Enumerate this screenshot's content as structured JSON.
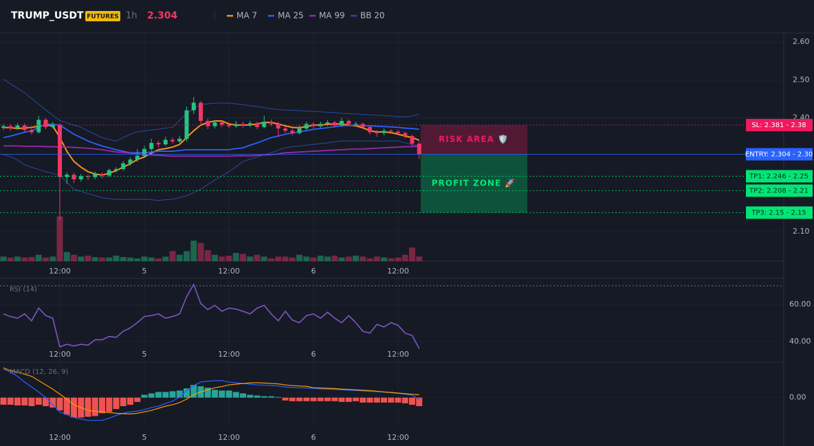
{
  "header": {
    "symbol": "TRUMP_USDT",
    "badge": "FUTURES",
    "interval": "1h",
    "price": 2.304
  },
  "chart_data": [
    {
      "type": "candlestick",
      "categories": [
        null,
        null,
        null,
        null,
        null,
        null,
        null,
        null,
        "12:00",
        null,
        null,
        null,
        null,
        null,
        null,
        null,
        null,
        null,
        null,
        null,
        "5",
        null,
        null,
        null,
        null,
        null,
        null,
        null,
        null,
        null,
        null,
        null,
        "12:00",
        null,
        null,
        null,
        null,
        null,
        null,
        null,
        null,
        null,
        null,
        null,
        "6",
        null,
        null,
        null,
        null,
        null,
        null,
        null,
        null,
        null,
        null,
        null,
        "12:00",
        null,
        null,
        null
      ],
      "open": [
        2.374,
        2.378,
        2.372,
        2.38,
        2.368,
        2.362,
        2.395,
        2.376,
        2.382,
        2.244,
        2.25,
        2.238,
        2.246,
        2.244,
        2.252,
        2.248,
        2.262,
        2.265,
        2.28,
        2.29,
        2.3,
        2.318,
        2.334,
        2.33,
        2.342,
        2.338,
        2.345,
        2.42,
        2.44,
        2.392,
        2.378,
        2.388,
        2.382,
        2.378,
        2.384,
        2.38,
        2.386,
        2.376,
        2.39,
        2.384,
        2.372,
        2.366,
        2.36,
        2.372,
        2.384,
        2.378,
        2.384,
        2.388,
        2.38,
        2.392,
        2.384,
        2.384,
        2.376,
        2.362,
        2.36,
        2.366,
        2.364,
        2.36,
        2.352,
        2.332
      ],
      "high": [
        2.384,
        2.384,
        2.386,
        2.386,
        2.375,
        2.405,
        2.4,
        2.39,
        2.386,
        2.256,
        2.256,
        2.252,
        2.25,
        2.258,
        2.256,
        2.266,
        2.27,
        2.286,
        2.296,
        2.318,
        2.326,
        2.345,
        2.34,
        2.35,
        2.348,
        2.352,
        2.43,
        2.455,
        2.444,
        2.398,
        2.394,
        2.392,
        2.388,
        2.392,
        2.39,
        2.392,
        2.39,
        2.406,
        2.396,
        2.39,
        2.378,
        2.372,
        2.38,
        2.39,
        2.388,
        2.39,
        2.394,
        2.392,
        2.4,
        2.396,
        2.39,
        2.388,
        2.38,
        2.368,
        2.372,
        2.37,
        2.368,
        2.364,
        2.356,
        2.338
      ],
      "low": [
        2.368,
        2.366,
        2.368,
        2.362,
        2.356,
        2.358,
        2.37,
        2.372,
        2.13,
        2.226,
        2.228,
        2.232,
        2.236,
        2.238,
        2.24,
        2.244,
        2.256,
        2.26,
        2.274,
        2.284,
        2.294,
        2.312,
        2.322,
        2.326,
        2.332,
        2.334,
        2.338,
        2.41,
        2.384,
        2.37,
        2.372,
        2.376,
        2.372,
        2.374,
        2.374,
        2.376,
        2.37,
        2.372,
        2.378,
        2.35,
        2.36,
        2.354,
        2.356,
        2.366,
        2.372,
        2.374,
        2.378,
        2.374,
        2.376,
        2.378,
        2.378,
        2.37,
        2.356,
        2.35,
        2.354,
        2.358,
        2.354,
        2.346,
        2.326,
        2.292
      ],
      "close": [
        2.378,
        2.372,
        2.38,
        2.368,
        2.362,
        2.395,
        2.376,
        2.382,
        2.244,
        2.25,
        2.238,
        2.246,
        2.244,
        2.252,
        2.248,
        2.262,
        2.265,
        2.28,
        2.29,
        2.3,
        2.318,
        2.334,
        2.33,
        2.342,
        2.338,
        2.345,
        2.42,
        2.44,
        2.392,
        2.378,
        2.388,
        2.382,
        2.378,
        2.384,
        2.38,
        2.386,
        2.376,
        2.39,
        2.384,
        2.372,
        2.366,
        2.36,
        2.372,
        2.384,
        2.378,
        2.384,
        2.388,
        2.38,
        2.392,
        2.384,
        2.384,
        2.376,
        2.362,
        2.36,
        2.366,
        2.364,
        2.36,
        2.352,
        2.332,
        2.304
      ],
      "volume": [
        10,
        8,
        10,
        8,
        9,
        14,
        8,
        10,
        98,
        20,
        14,
        10,
        12,
        9,
        8,
        8,
        12,
        9,
        8,
        6,
        10,
        8,
        6,
        10,
        22,
        14,
        22,
        45,
        40,
        24,
        14,
        10,
        12,
        18,
        16,
        10,
        14,
        10,
        6,
        10,
        10,
        8,
        14,
        10,
        8,
        12,
        10,
        12,
        8,
        10,
        12,
        10,
        6,
        10,
        8,
        6,
        8,
        14,
        30,
        10
      ],
      "y2lim": [
        0,
        500
      ],
      "up_color": "#26c281",
      "down_color": "#f23666",
      "ylim": [
        2.022,
        2.624
      ],
      "yticks": [
        {
          "value": 2.1,
          "label": "2.10"
        },
        {
          "value": 2.4,
          "label": "2.40"
        },
        {
          "value": 2.5,
          "label": "2.50"
        },
        {
          "value": 2.6,
          "label": "2.60"
        }
      ],
      "series": [
        {
          "name": "MA 7",
          "color": "#f7931a",
          "values": [
            2.375,
            2.374,
            2.372,
            2.373,
            2.375,
            2.378,
            2.381,
            2.379,
            2.348,
            2.312,
            2.285,
            2.27,
            2.258,
            2.252,
            2.249,
            2.254,
            2.261,
            2.27,
            2.279,
            2.29,
            2.297,
            2.307,
            2.316,
            2.319,
            2.323,
            2.33,
            2.348,
            2.366,
            2.381,
            2.388,
            2.392,
            2.392,
            2.384,
            2.381,
            2.381,
            2.381,
            2.384,
            2.388,
            2.388,
            2.384,
            2.379,
            2.375,
            2.374,
            2.377,
            2.381,
            2.381,
            2.383,
            2.384,
            2.384,
            2.381,
            2.379,
            2.374,
            2.366,
            2.363,
            2.363,
            2.361,
            2.357,
            2.352,
            2.348,
            2.341
          ]
        },
        {
          "name": "MA 25",
          "color": "#2962ff",
          "values": [
            2.348,
            2.352,
            2.357,
            2.362,
            2.366,
            2.375,
            2.384,
            2.383,
            2.381,
            2.369,
            2.357,
            2.348,
            2.339,
            2.332,
            2.326,
            2.321,
            2.316,
            2.312,
            2.308,
            2.308,
            2.308,
            2.31,
            2.312,
            2.312,
            2.312,
            2.314,
            2.316,
            2.316,
            2.316,
            2.316,
            2.316,
            2.316,
            2.316,
            2.319,
            2.321,
            2.328,
            2.334,
            2.341,
            2.348,
            2.352,
            2.357,
            2.36,
            2.363,
            2.366,
            2.37,
            2.372,
            2.374,
            2.377,
            2.379,
            2.38,
            2.381,
            2.38,
            2.379,
            2.378,
            2.377,
            2.376,
            2.375,
            2.373,
            2.372,
            2.37
          ]
        },
        {
          "name": "MA 99",
          "color": "#9c27b0",
          "values": [
            2.326,
            2.326,
            2.326,
            2.325,
            2.325,
            2.325,
            2.324,
            2.324,
            2.323,
            2.323,
            2.322,
            2.321,
            2.32,
            2.318,
            2.316,
            2.313,
            2.31,
            2.309,
            2.307,
            2.305,
            2.303,
            2.302,
            2.301,
            2.3,
            2.299,
            2.299,
            2.299,
            2.299,
            2.299,
            2.299,
            2.299,
            2.299,
            2.299,
            2.3,
            2.3,
            2.3,
            2.301,
            2.302,
            2.303,
            2.305,
            2.308,
            2.309,
            2.31,
            2.311,
            2.312,
            2.313,
            2.314,
            2.315,
            2.316,
            2.317,
            2.318,
            2.318,
            2.319,
            2.32,
            2.321,
            2.322,
            2.323,
            2.324,
            2.324,
            2.325
          ]
        },
        {
          "name": "BB 20",
          "color": "#2a4a9e",
          "upper": [
            2.502,
            2.49,
            2.478,
            2.466,
            2.451,
            2.436,
            2.421,
            2.407,
            2.393,
            2.387,
            2.381,
            2.375,
            2.366,
            2.357,
            2.348,
            2.343,
            2.339,
            2.348,
            2.357,
            2.363,
            2.366,
            2.368,
            2.37,
            2.373,
            2.375,
            2.394,
            2.412,
            2.424,
            2.435,
            2.437,
            2.439,
            2.439,
            2.439,
            2.437,
            2.435,
            2.432,
            2.43,
            2.427,
            2.424,
            2.422,
            2.421,
            2.42,
            2.419,
            2.418,
            2.417,
            2.416,
            2.415,
            2.414,
            2.412,
            2.411,
            2.41,
            2.409,
            2.408,
            2.407,
            2.406,
            2.405,
            2.403,
            2.403,
            2.405,
            2.41
          ],
          "lower": [
            2.303,
            2.298,
            2.289,
            2.276,
            2.27,
            2.264,
            2.258,
            2.254,
            2.249,
            2.23,
            2.212,
            2.206,
            2.2,
            2.195,
            2.189,
            2.187,
            2.185,
            2.185,
            2.185,
            2.185,
            2.185,
            2.184,
            2.182,
            2.184,
            2.185,
            2.19,
            2.194,
            2.203,
            2.212,
            2.224,
            2.236,
            2.247,
            2.258,
            2.271,
            2.285,
            2.291,
            2.297,
            2.302,
            2.308,
            2.315,
            2.321,
            2.324,
            2.326,
            2.328,
            2.33,
            2.332,
            2.334,
            2.337,
            2.339,
            2.339,
            2.339,
            2.339,
            2.339,
            2.339,
            2.339,
            2.339,
            2.339,
            2.334,
            2.33,
            2.325
          ]
        }
      ],
      "levels": [
        {
          "label": "SL: 2.381 - 2.38",
          "value": 2.381,
          "color": "#f0185e",
          "text_color": "#ffffff",
          "style": "dotted"
        },
        {
          "label": "ENTRY: 2.304 - 2.30",
          "value": 2.304,
          "color": "#2962ff",
          "text_color": "#ffffff",
          "style": "solid"
        },
        {
          "label": "TP1: 2.246 - 2.25",
          "value": 2.246,
          "color": "#00e676",
          "text_color": "#0b2a1a",
          "style": "dotted"
        },
        {
          "label": "TP2: 2.208 - 2.21",
          "value": 2.208,
          "color": "#00e676",
          "text_color": "#0b2a1a",
          "style": "dotted"
        },
        {
          "label": "TP3: 2.15 - 2.15",
          "value": 2.15,
          "color": "#00e676",
          "text_color": "#0b2a1a",
          "style": "dotted"
        }
      ],
      "zones": [
        {
          "label": "RISK AREA 🛡️",
          "top": 2.381,
          "bottom": 2.304,
          "color": "#f0185e"
        },
        {
          "label": "PROFIT ZONE 🚀",
          "top": 2.304,
          "bottom": 2.15,
          "color": "#00e676"
        }
      ]
    },
    {
      "type": "line",
      "title": "RSI (14)",
      "color": "#7e57c2",
      "values": [
        54.9,
        53.5,
        52.6,
        54.9,
        51.2,
        58.0,
        54.0,
        52.6,
        37.2,
        38.6,
        37.7,
        38.6,
        38.1,
        41.0,
        41.0,
        42.8,
        42.3,
        45.6,
        47.4,
        50.2,
        53.5,
        54.0,
        54.9,
        52.6,
        53.5,
        54.9,
        64.2,
        70.7,
        60.5,
        57.2,
        59.5,
        56.3,
        58.0,
        57.5,
        56.3,
        54.9,
        58.0,
        59.5,
        54.9,
        51.2,
        56.3,
        51.6,
        50.2,
        54.0,
        54.9,
        52.6,
        55.8,
        52.6,
        50.2,
        54.0,
        50.2,
        45.6,
        44.6,
        49.3,
        47.9,
        50.2,
        48.8,
        44.6,
        43.3,
        36.3
      ],
      "ylim": [
        29,
        74
      ],
      "yticks": [
        {
          "value": 40,
          "label": "40.00"
        },
        {
          "value": 60,
          "label": "60.00"
        }
      ],
      "levels": [
        70
      ]
    },
    {
      "type": "macd",
      "title": "MACD (12, 26, 9)",
      "histogram": [
        -0.005,
        -0.005,
        -0.0055,
        -0.0055,
        -0.006,
        -0.005,
        -0.006,
        -0.007,
        -0.009,
        -0.012,
        -0.014,
        -0.014,
        -0.0135,
        -0.013,
        -0.011,
        -0.01,
        -0.008,
        -0.006,
        -0.005,
        -0.003,
        0.002,
        0.003,
        0.004,
        0.004,
        0.0045,
        0.005,
        0.0065,
        0.009,
        0.008,
        0.007,
        0.0055,
        0.005,
        0.005,
        0.004,
        0.003,
        0.002,
        0.0015,
        0.001,
        0.001,
        0.0005,
        -0.002,
        -0.0025,
        -0.0025,
        -0.0025,
        -0.0025,
        -0.0025,
        -0.0025,
        -0.0025,
        -0.003,
        -0.003,
        -0.0025,
        -0.0035,
        -0.0035,
        -0.0035,
        -0.0035,
        -0.0035,
        -0.0035,
        -0.004,
        -0.005,
        -0.006
      ],
      "macd": [
        0.02,
        0.018,
        0.015,
        0.011,
        0.0075,
        0.004,
        0,
        -0.005,
        -0.01,
        -0.012,
        -0.014,
        -0.015,
        -0.016,
        -0.016,
        -0.016,
        -0.0145,
        -0.0125,
        -0.011,
        -0.01,
        -0.0095,
        -0.0085,
        -0.007,
        -0.006,
        -0.004,
        -0.0025,
        0.0005,
        0.005,
        0.0085,
        0.011,
        0.0115,
        0.012,
        0.012,
        0.011,
        0.0105,
        0.01,
        0.0095,
        0.009,
        0.0088,
        0.0085,
        0.0082,
        0.0075,
        0.0072,
        0.007,
        0.0068,
        0.0065,
        0.0062,
        0.006,
        0.0058,
        0.0055,
        0.0052,
        0.005,
        0.0048,
        0.0045,
        0.0042,
        0.004,
        0.0035,
        0.003,
        0.0025,
        0.0018,
        -0.0015
      ],
      "signal": [
        0.021,
        0.019,
        0.018,
        0.0165,
        0.015,
        0.012,
        0.009,
        0.006,
        0.0025,
        -0.001,
        -0.005,
        -0.007,
        -0.009,
        -0.0095,
        -0.01,
        -0.0105,
        -0.011,
        -0.0113,
        -0.0115,
        -0.011,
        -0.01,
        -0.009,
        -0.0075,
        -0.006,
        -0.005,
        -0.0035,
        -0.001,
        0.002,
        0.004,
        0.0055,
        0.007,
        0.0078,
        0.009,
        0.0095,
        0.01,
        0.0104,
        0.0105,
        0.0103,
        0.01,
        0.0097,
        0.009,
        0.0085,
        0.0082,
        0.008,
        0.007,
        0.0068,
        0.0066,
        0.0064,
        0.006,
        0.0058,
        0.0055,
        0.0052,
        0.005,
        0.0045,
        0.004,
        0.0037,
        0.0032,
        0.0028,
        0.0024,
        0.002
      ],
      "up_color": "#26a69a",
      "down_color": "#ef5350",
      "macd_color": "#2962ff",
      "signal_color": "#ff9800",
      "ylim": [
        -0.021,
        0.025
      ],
      "yticks": [
        {
          "value": 0,
          "label": "0.00"
        }
      ]
    }
  ]
}
